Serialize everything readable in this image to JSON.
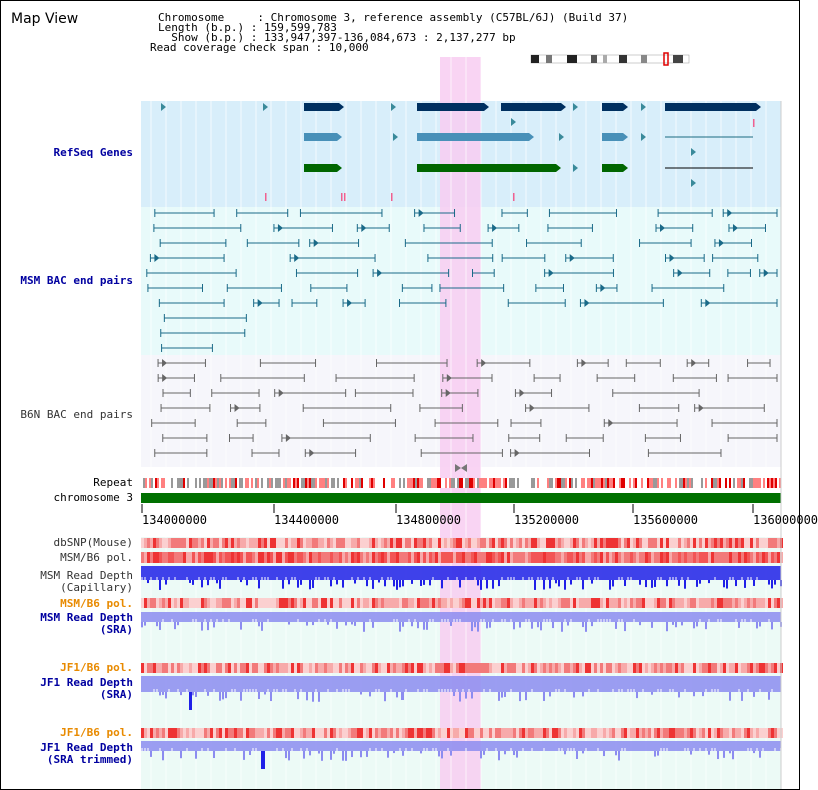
{
  "page": {
    "title": "Map View"
  },
  "info": {
    "chromosome_key": "Chromosome",
    "chromosome_value": "Chromosome 3, reference assembly (C57BL/6J) (Build 37)",
    "length_key": "Length (b.p.)",
    "length_value": "159,599,783",
    "show_key": "Show (b.p.)",
    "show_value": "133,947,397-136,084,673 : 2,137,277 bp",
    "span_key": "Read coverage check span",
    "span_value": "10,000"
  },
  "tracks": {
    "refseq": "RefSeq Genes",
    "msm_bac": "MSM BAC end pairs",
    "b6n_bac": "B6N BAC end pairs",
    "repeat": "Repeat",
    "chromosome": "chromosome 3",
    "dbsnp": "dbSNP(Mouse)",
    "msm_b6_pol": "MSM/B6 pol.",
    "msm_read_depth_cap_1": "MSM Read Depth",
    "msm_read_depth_cap_2": "(Capillary)",
    "msm_b6_pol_sra": "MSM/B6 pol.",
    "msm_read_depth_sra_1": "MSM Read Depth",
    "msm_read_depth_sra_2": "(SRA)",
    "jf1_b6_pol": "JF1/B6 pol.",
    "jf1_read_depth_1": "JF1 Read Depth",
    "jf1_read_depth_2": "(SRA)",
    "jf1_b6_pol_trim": "JF1/B6 pol.",
    "jf1_read_depth_trim_1": "JF1 Read Depth",
    "jf1_read_depth_trim_2": "(SRA trimmed)"
  },
  "axis": {
    "ticks": [
      "134000000",
      "134400000",
      "134800000",
      "135200000",
      "135600000",
      "136000000"
    ]
  },
  "colors": {
    "refseq_bg": "#d8eefa",
    "bac_bg": "#e8fafa",
    "b6n_bg": "#f6f6fb",
    "depth_bg": "#ecfaf6",
    "highlight": "#f8cdf1",
    "gene_navy": "#003060",
    "gene_teal": "#4890b8",
    "gene_green": "#006600",
    "chromosome_green": "#007000",
    "depth_blue": "#2020e8",
    "depth_light": "#8c8cf0"
  }
}
